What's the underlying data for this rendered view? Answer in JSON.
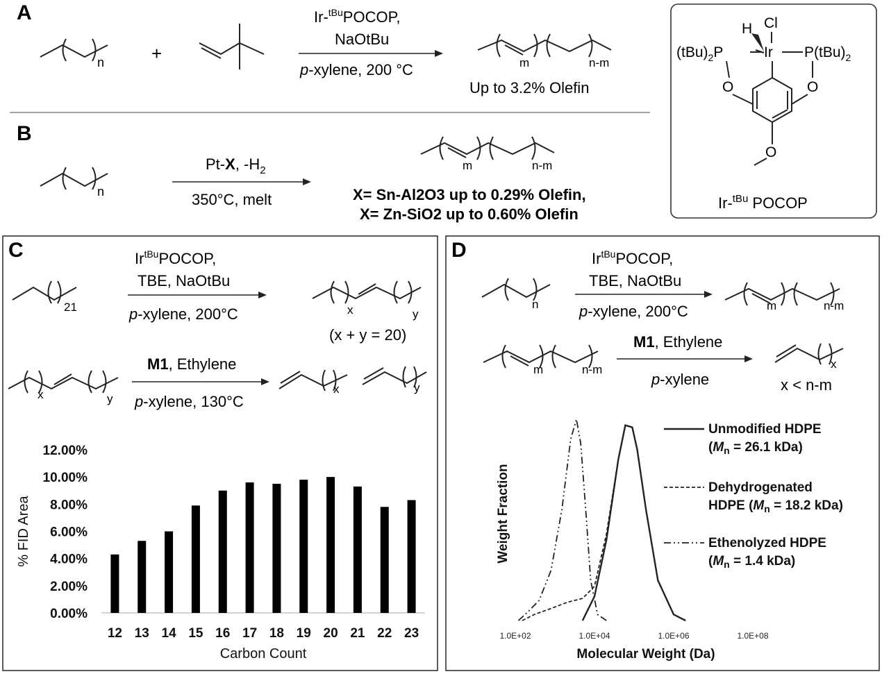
{
  "panels": {
    "A": {
      "letter": "A",
      "reactant_n": "n",
      "plus": "+",
      "catalyst_pre": "Ir-",
      "catalyst_sup": "tBu",
      "catalyst_post": "POCOP,",
      "base": "NaOtBu",
      "solvent_prefix": "p",
      "solvent_rest": "-xylene, 200 °C",
      "product_m": "m",
      "product_nm": "n-m",
      "yield": "Up to 3.2% Olefin"
    },
    "B": {
      "letter": "B",
      "reactant_n": "n",
      "cat_pre": "Pt-",
      "cat_x": "X",
      "cat_post": ", -H",
      "cat_sub": "2",
      "conditions": "350°C, melt",
      "product_m": "m",
      "product_nm": "n-m",
      "line1": "X= Sn-Al2O3 up to 0.29% Olefin,",
      "line2": "X= Zn-SiO2 up to 0.60% Olefin"
    },
    "complex": {
      "H": "H",
      "Cl": "Cl",
      "left_P_pre": "(tBu)",
      "left_P_sub": "2",
      "left_P_post": "P",
      "Ir": "Ir",
      "right_P": "P(tBu)",
      "right_sub": "2",
      "O": "O",
      "caption_pre": "Ir-",
      "caption_sup": "tBu",
      "caption_post": " POCOP"
    },
    "C": {
      "letter": "C",
      "r1_sub": "21",
      "r1_cat_pre": "Ir",
      "r1_cat_sup": "tBu",
      "r1_cat_post": "POCOP,",
      "r1_line2": "TBE, NaOtBu",
      "r1_solvent_prefix": "p",
      "r1_solvent_rest": "-xylene, 200°C",
      "r1_x": "x",
      "r1_y": "y",
      "r1_note": "(x + y = 20)",
      "r2_x": "x",
      "r2_y": "y",
      "r2_cat": "M1",
      "r2_rest": ", Ethylene",
      "r2_solvent_prefix": "p",
      "r2_solvent_rest": "-xylene, 130°C",
      "r2_px": "x",
      "r2_py": "y"
    },
    "D": {
      "letter": "D",
      "r1_n": "n",
      "r1_cat_pre": "Ir",
      "r1_cat_sup": "tBu",
      "r1_cat_post": "POCOP,",
      "r1_line2": "TBE, NaOtBu",
      "r1_solvent_prefix": "p",
      "r1_solvent_rest": "-xylene, 200°C",
      "r1_m": "m",
      "r1_nm": "n-m",
      "r2_m": "m",
      "r2_nm": "n-m",
      "r2_cat": "M1",
      "r2_rest": ", Ethylene",
      "r2_solvent_prefix": "p",
      "r2_solvent_rest": "-xylene",
      "r2_x": "x",
      "r2_note": "x < n-m"
    }
  },
  "chart_data": [
    {
      "type": "bar",
      "panel": "C",
      "categories": [
        "12",
        "13",
        "14",
        "15",
        "16",
        "17",
        "18",
        "19",
        "20",
        "21",
        "22",
        "23"
      ],
      "values": [
        4.3,
        5.3,
        6.0,
        7.9,
        9.0,
        9.6,
        9.5,
        9.8,
        10.0,
        9.3,
        7.8,
        8.3
      ],
      "ylim": [
        0,
        12
      ],
      "yticks": [
        "0.00%",
        "2.00%",
        "4.00%",
        "6.00%",
        "8.00%",
        "10.00%",
        "12.00%"
      ],
      "ytick_values": [
        0,
        2,
        4,
        6,
        8,
        10,
        12
      ],
      "xlabel": "Carbon Count",
      "ylabel": "% FID Area",
      "bar_color": "#000000",
      "grid": false
    },
    {
      "type": "line",
      "panel": "D",
      "x_scale": "log",
      "xlim": [
        100,
        100000000
      ],
      "xticks": [
        "1.0E+02",
        "1.0E+04",
        "1.0E+06",
        "1.0E+08"
      ],
      "xtick_values": [
        100,
        10000,
        1000000,
        100000000
      ],
      "xlabel": "Molecular Weight (Da)",
      "ylabel": "Weight Fraction",
      "ylim": [
        0,
        1
      ],
      "y_ticks_shown": false,
      "legend_position": "right",
      "series": [
        {
          "legend_line1": "Unmodified HDPE",
          "legend_line2_pre": "(",
          "legend_line2_italic": "M",
          "legend_line2_sub": "n",
          "legend_line2_post": " = 26.1 kDa)",
          "style": "solid",
          "x": [
            5000,
            10000,
            20000,
            40000,
            60000,
            90000,
            120000,
            200000,
            400000,
            1000000,
            2000000
          ],
          "y": [
            0.0,
            0.12,
            0.4,
            0.8,
            0.97,
            0.96,
            0.85,
            0.55,
            0.2,
            0.03,
            0.0
          ]
        },
        {
          "legend_line1": "Dehydrogenated",
          "legend_line2_pre": "HDPE (",
          "legend_line2_italic": "M",
          "legend_line2_sub": "n",
          "legend_line2_post": " = 18.2 kDa)",
          "style": "dashed",
          "x": [
            150,
            300,
            800,
            2000,
            5000,
            10000,
            20000,
            40000,
            60000,
            90000,
            120000,
            200000,
            400000,
            1000000,
            2000000
          ],
          "y": [
            0.0,
            0.03,
            0.06,
            0.09,
            0.11,
            0.17,
            0.43,
            0.8,
            0.97,
            0.96,
            0.85,
            0.55,
            0.2,
            0.03,
            0.0
          ]
        },
        {
          "legend_line1": "Ethenolyzed HDPE",
          "legend_line2_pre": "(",
          "legend_line2_italic": "M",
          "legend_line2_sub": "n",
          "legend_line2_post": " = 1.4 kDa)",
          "style": "dash-dot-dot",
          "x": [
            120,
            200,
            400,
            800,
            1500,
            2500,
            3500,
            4500,
            6000,
            8000,
            12000,
            20000
          ],
          "y": [
            0.0,
            0.04,
            0.1,
            0.25,
            0.55,
            0.9,
            1.0,
            0.88,
            0.55,
            0.2,
            0.03,
            0.0
          ]
        }
      ]
    }
  ]
}
